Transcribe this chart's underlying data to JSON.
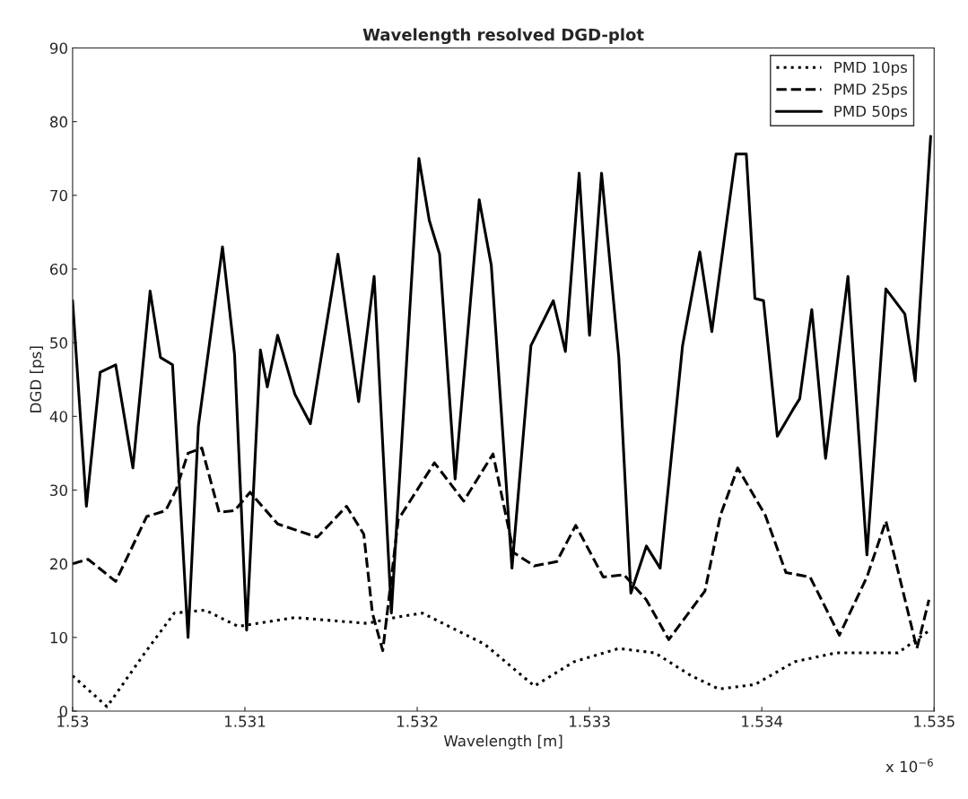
{
  "chart_data": {
    "type": "line",
    "title": "Wavelength resolved DGD-plot",
    "xlabel": "Wavelength [m]",
    "ylabel": "DGD [ps]",
    "annotations": [
      "x 10$^{−6}$"
    ],
    "xlim": [
      1.53,
      1.535
    ],
    "xticks": [
      {
        "value": 1.53,
        "label": "1.53"
      },
      1.531,
      1.532,
      1.533,
      1.534,
      1.535
    ],
    "ylim": [
      0,
      90
    ],
    "yticks": [
      0,
      10,
      20,
      30,
      40,
      50,
      60,
      70,
      80,
      90
    ],
    "grid": false,
    "legend": "top right",
    "series": [
      {
        "name": "PMD 10ps",
        "color": "#000000",
        "line_style": "dotted",
        "x": [
          1.53,
          1.5302,
          1.53041,
          1.53059,
          1.53077,
          1.53096,
          1.53129,
          1.53171,
          1.53187,
          1.53203,
          1.53239,
          1.53268,
          1.53291,
          1.53317,
          1.53338,
          1.53359,
          1.53375,
          1.53396,
          1.53419,
          1.53443,
          1.53479,
          1.53497
        ],
        "values": [
          4.8,
          0.6,
          7.6,
          13.3,
          13.7,
          11.5,
          12.7,
          11.9,
          12.7,
          13.3,
          9.1,
          3.4,
          6.7,
          8.5,
          7.9,
          4.8,
          3,
          3.6,
          6.7,
          7.9,
          7.9,
          10.9
        ]
      },
      {
        "name": "PMD 25ps",
        "color": "#000000",
        "line_style": "dashed",
        "x": [
          1.53,
          1.53009,
          1.53025,
          1.53043,
          1.53054,
          1.5306,
          1.53067,
          1.53075,
          1.53085,
          1.53094,
          1.53103,
          1.53119,
          1.53142,
          1.53159,
          1.53169,
          1.53174,
          1.5318,
          1.53189,
          1.5321,
          1.53227,
          1.53244,
          1.53256,
          1.53268,
          1.53281,
          1.53292,
          1.53308,
          1.5332,
          1.53333,
          1.53346,
          1.53367,
          1.53376,
          1.53386,
          1.53402,
          1.53414,
          1.53428,
          1.53445,
          1.53461,
          1.53472,
          1.5349,
          1.53497
        ],
        "values": [
          20,
          20.6,
          17.6,
          26.4,
          27.2,
          30,
          35,
          35.7,
          27,
          27.2,
          29.7,
          25.4,
          23.6,
          27.8,
          24,
          13.3,
          8.2,
          26,
          33.7,
          28.5,
          34.9,
          21.5,
          19.7,
          20.3,
          25.2,
          18.2,
          18.5,
          15.1,
          9.7,
          16.3,
          26.6,
          33,
          26.6,
          18.8,
          18.2,
          10.3,
          18.2,
          25.8,
          8.5,
          15.1
        ]
      },
      {
        "name": "PMD 50ps",
        "color": "#000000",
        "line_style": "solid",
        "x": [
          1.53,
          1.53008,
          1.53016,
          1.53025,
          1.53035,
          1.53045,
          1.53051,
          1.53058,
          1.53067,
          1.53073,
          1.53087,
          1.53094,
          1.53101,
          1.53109,
          1.53113,
          1.53119,
          1.53129,
          1.53138,
          1.53154,
          1.53166,
          1.53175,
          1.53185,
          1.53201,
          1.53207,
          1.53213,
          1.53222,
          1.53236,
          1.53243,
          1.53255,
          1.53266,
          1.53279,
          1.53286,
          1.53294,
          1.533,
          1.53307,
          1.53317,
          1.53324,
          1.53333,
          1.53341,
          1.53354,
          1.53364,
          1.53371,
          1.53379,
          1.53385,
          1.53388,
          1.53391,
          1.53396,
          1.53401,
          1.53409,
          1.53418,
          1.53422,
          1.53429,
          1.53437,
          1.5345,
          1.53461,
          1.53472,
          1.53483,
          1.53489,
          1.53498
        ],
        "values": [
          55.7,
          27.8,
          46,
          47,
          33,
          57,
          48,
          47,
          10,
          38.7,
          63,
          48.4,
          11,
          49,
          44,
          51,
          43,
          39,
          62,
          42,
          59,
          13.3,
          75,
          66.6,
          62,
          31.5,
          69.4,
          60.5,
          19.4,
          49.6,
          55.7,
          48.8,
          73,
          51,
          73,
          48,
          16,
          22.4,
          19.4,
          49.6,
          62.3,
          51.5,
          65.4,
          75.6,
          null,
          75.6,
          56,
          55.7,
          37.3,
          40.9,
          42.4,
          54.5,
          34.3,
          59,
          21.2,
          57.3,
          53.9,
          44.8,
          78
        ]
      }
    ]
  }
}
